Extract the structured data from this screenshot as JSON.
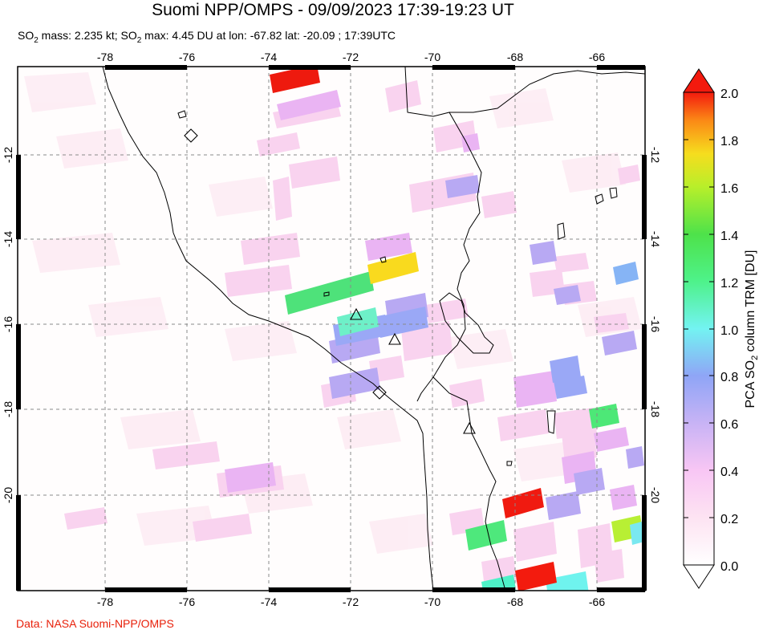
{
  "title": "Suomi NPP/OMPS - 09/09/2023 17:39-19:23 UT",
  "subtitle": {
    "prefix": "SO",
    "mass_label": " mass: 2.235 kt; SO",
    "max_label": " max: 4.45 DU at lon: -67.82 lat: -20.09 ; 17:39UTC",
    "subscript": "2"
  },
  "credit": "Data: NASA Suomi-NPP/OMPS",
  "map": {
    "lon_range": [
      -80.2,
      -65.1
    ],
    "lat_range": [
      -22.3,
      -9.9
    ],
    "lon_ticks": [
      "-78",
      "-76",
      "-74",
      "-72",
      "-70",
      "-68",
      "-66"
    ],
    "lon_tick_values": [
      -78,
      -76,
      -74,
      -72,
      -70,
      -68,
      -66
    ],
    "lat_ticks": [
      "-12",
      "-14",
      "-16",
      "-18",
      "-20"
    ],
    "lat_tick_values": [
      -12,
      -14,
      -16,
      -18,
      -20
    ],
    "volcanoes_triangle_count": 3,
    "volcanoes_diamond_count": 2
  },
  "colorbar": {
    "title_prefix": "PCA SO",
    "title_sub": "2",
    "title_suffix": " column TRM [DU]",
    "ticks": [
      "0.0",
      "0.2",
      "0.4",
      "0.6",
      "0.8",
      "1.0",
      "1.2",
      "1.4",
      "1.6",
      "1.8",
      "2.0"
    ],
    "range": [
      0.0,
      2.0
    ]
  },
  "colors": {
    "coast": "#000000",
    "grid": "#8a8a8a",
    "credit": "#e8200a"
  }
}
